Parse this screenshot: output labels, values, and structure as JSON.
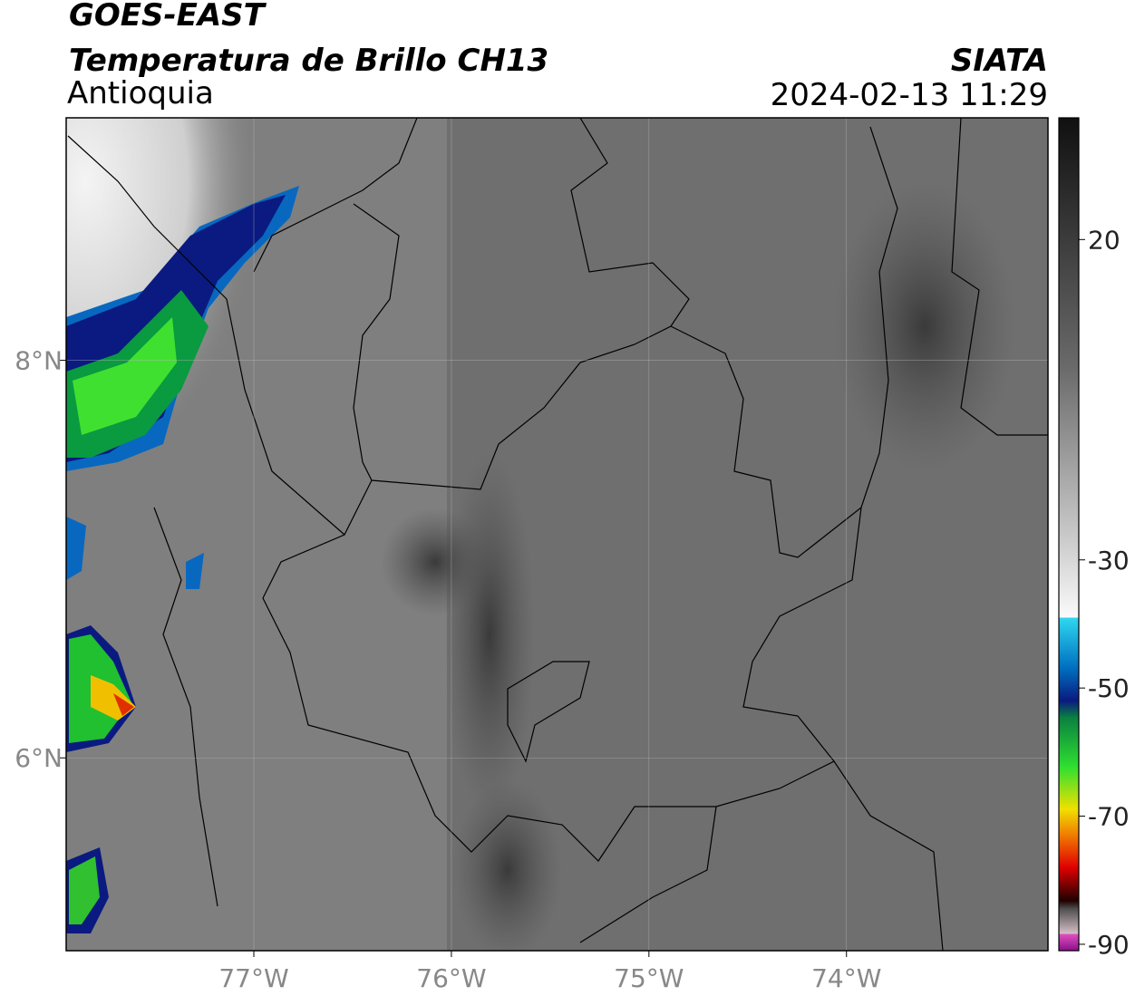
{
  "header": {
    "title": "GOES-EAST",
    "subtitle": "Temperatura de Brillo CH13",
    "region": "Antioquia",
    "source": "SIATA",
    "datetime": "2024-02-13 11:29"
  },
  "map": {
    "xlim": [
      -77.95,
      -72.98
    ],
    "ylim": [
      5.03,
      9.22
    ],
    "xticks": [
      {
        "value": -77,
        "label": "77°W"
      },
      {
        "value": -76,
        "label": "76°W"
      },
      {
        "value": -75,
        "label": "75°W"
      },
      {
        "value": -74,
        "label": "74°W"
      }
    ],
    "yticks": [
      {
        "value": 8,
        "label": "8°N"
      },
      {
        "value": 6,
        "label": "6°N"
      }
    ],
    "grid": true
  },
  "colorbar": {
    "lim": [
      -91,
      39
    ],
    "ticks": [
      20,
      -30,
      -50,
      -70,
      -90
    ]
  }
}
